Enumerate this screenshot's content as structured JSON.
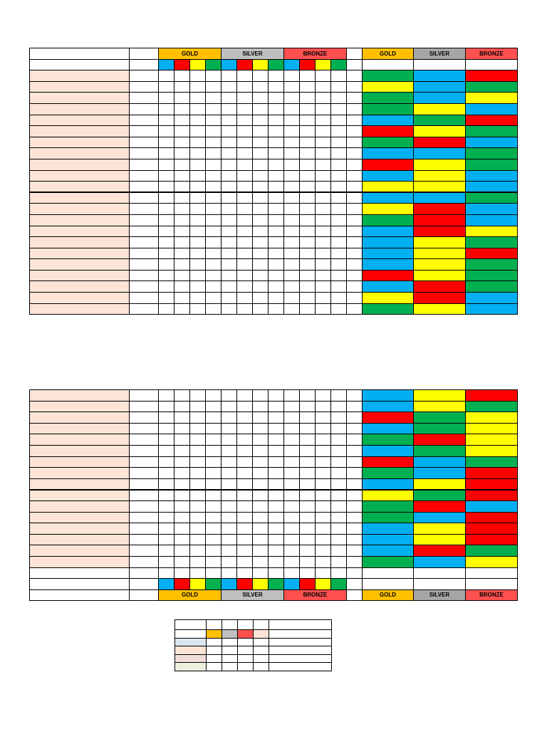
{
  "headers": {
    "gold": "GOLD",
    "silver": "SILVER",
    "bronze": "BRONZE"
  },
  "colors": {
    "B": "#00b0f0",
    "R": "#ff0000",
    "Y": "#ffff00",
    "G": "#00b050",
    "gold": "#ffc000",
    "silver": "#bfbfbf",
    "silver_dark": "#a6a6a6",
    "bronze": "#ff5050",
    "name_fill": "#fce4d6"
  },
  "marker_sequence": [
    "B",
    "R",
    "Y",
    "G"
  ],
  "top_table": {
    "rows": [
      [
        "G",
        "B",
        "R"
      ],
      [
        "Y",
        "B",
        "G"
      ],
      [
        "G",
        "B",
        "Y"
      ],
      [
        "G",
        "Y",
        "B"
      ],
      [
        "B",
        "G",
        "R"
      ],
      [
        "R",
        "Y",
        "G"
      ],
      [
        "G",
        "R",
        "B"
      ],
      [
        "B",
        "B",
        "G"
      ],
      [
        "R",
        "Y",
        "G"
      ],
      [
        "B",
        "Y",
        "B"
      ],
      [
        "Y",
        "Y",
        "B"
      ],
      [
        "B",
        "B",
        "G"
      ],
      [
        "Y",
        "R",
        "B"
      ],
      [
        "G",
        "R",
        "B"
      ],
      [
        "B",
        "R",
        "Y"
      ],
      [
        "B",
        "Y",
        "G"
      ],
      [
        "B",
        "Y",
        "R"
      ],
      [
        "B",
        "Y",
        "G"
      ],
      [
        "R",
        "Y",
        "G"
      ],
      [
        "B",
        "R",
        "G"
      ],
      [
        "Y",
        "R",
        "B"
      ],
      [
        "G",
        "Y",
        "B"
      ]
    ]
  },
  "bottom_table": {
    "rows": [
      [
        "B",
        "Y",
        "R"
      ],
      [
        "B",
        "Y",
        "G"
      ],
      [
        "R",
        "G",
        "Y"
      ],
      [
        "B",
        "G",
        "Y"
      ],
      [
        "G",
        "R",
        "Y"
      ],
      [
        "B",
        "G",
        "Y"
      ],
      [
        "R",
        "B",
        "G"
      ],
      [
        "G",
        "B",
        "R"
      ],
      [
        "B",
        "Y",
        "R"
      ],
      [
        "Y",
        "G",
        "R"
      ],
      [
        "G",
        "R",
        "B"
      ],
      [
        "G",
        "B",
        "R"
      ],
      [
        "B",
        "Y",
        "R"
      ],
      [
        "B",
        "Y",
        "R"
      ],
      [
        "B",
        "R",
        "G"
      ],
      [
        "G",
        "B",
        "Y"
      ]
    ]
  },
  "legend": {
    "swatches": [
      "#dce6f1",
      "#fce4d6",
      "#f2dcdb",
      "#ebf1de"
    ]
  }
}
